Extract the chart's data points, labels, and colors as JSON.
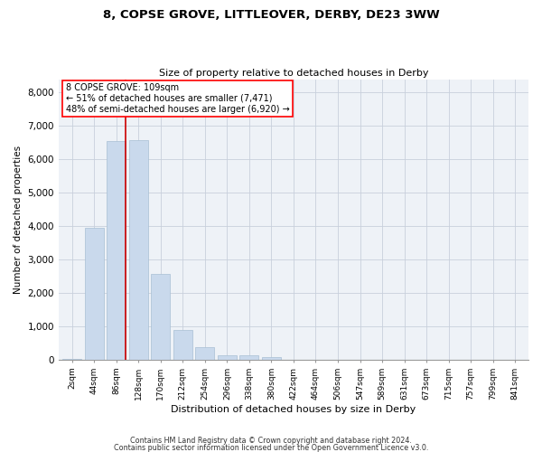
{
  "title1": "8, COPSE GROVE, LITTLEOVER, DERBY, DE23 3WW",
  "title2": "Size of property relative to detached houses in Derby",
  "xlabel": "Distribution of detached houses by size in Derby",
  "ylabel": "Number of detached properties",
  "bar_color": "#c9d9ec",
  "bar_edge_color": "#a8bfd4",
  "grid_color": "#c8d0dc",
  "background_color": "#eef2f7",
  "vline_color": "#cc0000",
  "categories": [
    "2sqm",
    "44sqm",
    "86sqm",
    "128sqm",
    "170sqm",
    "212sqm",
    "254sqm",
    "296sqm",
    "338sqm",
    "380sqm",
    "422sqm",
    "464sqm",
    "506sqm",
    "547sqm",
    "589sqm",
    "631sqm",
    "673sqm",
    "715sqm",
    "757sqm",
    "799sqm",
    "841sqm"
  ],
  "values": [
    25,
    3950,
    6550,
    6570,
    2580,
    880,
    380,
    130,
    120,
    70,
    0,
    0,
    0,
    0,
    0,
    0,
    0,
    0,
    0,
    0,
    0
  ],
  "ylim": [
    0,
    8400
  ],
  "yticks": [
    0,
    1000,
    2000,
    3000,
    4000,
    5000,
    6000,
    7000,
    8000
  ],
  "vline_x_index": 2.43,
  "annotation_text": "8 COPSE GROVE: 109sqm\n← 51% of detached houses are smaller (7,471)\n48% of semi-detached houses are larger (6,920) →",
  "footer1": "Contains HM Land Registry data © Crown copyright and database right 2024.",
  "footer2": "Contains public sector information licensed under the Open Government Licence v3.0."
}
